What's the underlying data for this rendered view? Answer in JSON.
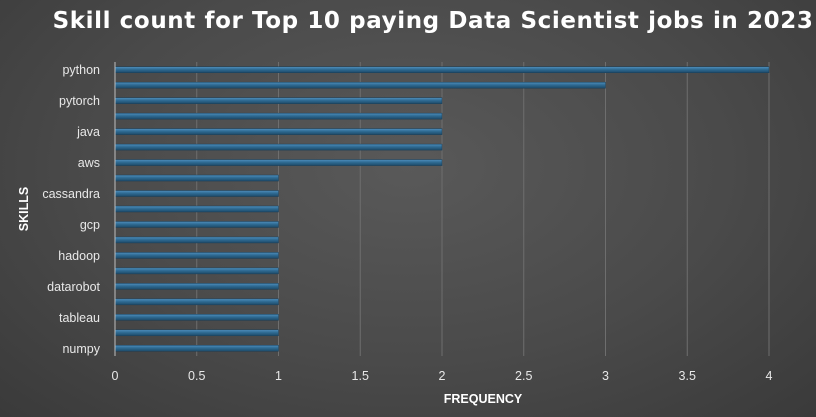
{
  "chart_data": {
    "type": "bar",
    "orientation": "horizontal",
    "title": "Skill count for Top 10 paying Data Scientist jobs in 2023",
    "xlabel": "FREQUENCY",
    "ylabel": "SKILLS",
    "xlim": [
      0,
      4
    ],
    "x_ticks": [
      "0",
      "0.5",
      "1",
      "1.5",
      "2",
      "2.5",
      "3",
      "3.5",
      "4"
    ],
    "categories": [
      "python",
      "",
      "pytorch",
      "",
      "java",
      "",
      "aws",
      "",
      "cassandra",
      "",
      "gcp",
      "",
      "hadoop",
      "",
      "datarobot",
      "",
      "tableau",
      "",
      "numpy"
    ],
    "values": [
      4,
      3,
      2,
      2,
      2,
      2,
      2,
      1,
      1,
      1,
      1,
      1,
      1,
      1,
      1,
      1,
      1,
      1,
      1
    ],
    "grid": "vertical",
    "bar_color": "#2f6b93"
  }
}
